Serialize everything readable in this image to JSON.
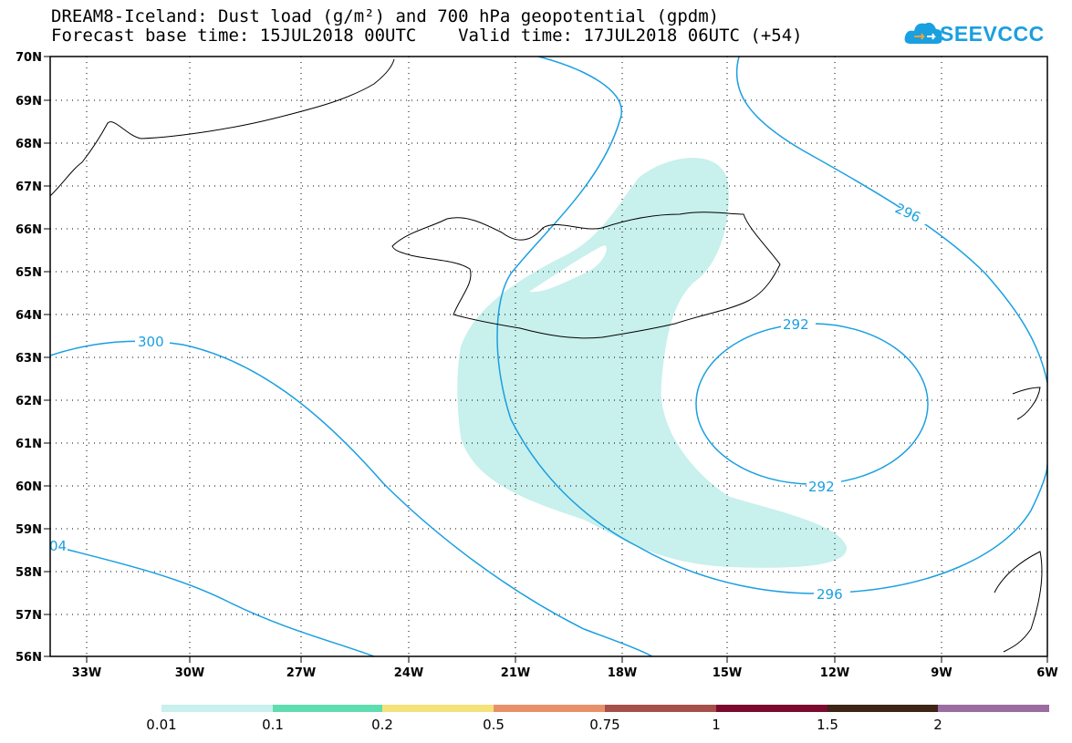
{
  "header": {
    "title_line1": "DREAM8-Iceland: Dust load (g/m²) and 700 hPa geopotential (gpdm)",
    "title_line2": "Forecast base time: 15JUL2018 00UTC    Valid time: 17JUL2018 06UTC (+54)"
  },
  "logo": {
    "text": "SEEVCCC",
    "icon": "cloud-icon",
    "color": "#1a9fe0"
  },
  "map": {
    "lat_labels": [
      "70N",
      "69N",
      "68N",
      "67N",
      "66N",
      "65N",
      "64N",
      "63N",
      "62N",
      "61N",
      "60N",
      "59N",
      "58N",
      "57N",
      "56N"
    ],
    "lon_labels": [
      "33W",
      "30W",
      "27W",
      "24W",
      "21W",
      "18W",
      "15W",
      "12W",
      "9W",
      "6W"
    ],
    "contour_labels": [
      {
        "text": "300",
        "color": "#1a9fe0"
      },
      {
        "text": "04",
        "color": "#1a9fe0"
      },
      {
        "text": "296",
        "color": "#1a9fe0"
      },
      {
        "text": "296",
        "color": "#1a9fe0"
      },
      {
        "text": "292",
        "color": "#1a9fe0"
      },
      {
        "text": "292",
        "color": "#1a9fe0"
      }
    ],
    "dust_color": "#c8f0ec",
    "contour_color": "#1a9fe0"
  },
  "colorbar": {
    "labels": [
      "0.01",
      "0.1",
      "0.2",
      "0.5",
      "0.75",
      "1",
      "1.5",
      "2"
    ],
    "colors": [
      "#c8f0ec",
      "#5fdcb0",
      "#f5e27a",
      "#e8906a",
      "#a5504a",
      "#7a0a2e",
      "#3d2414",
      "#9a6ca0"
    ]
  }
}
